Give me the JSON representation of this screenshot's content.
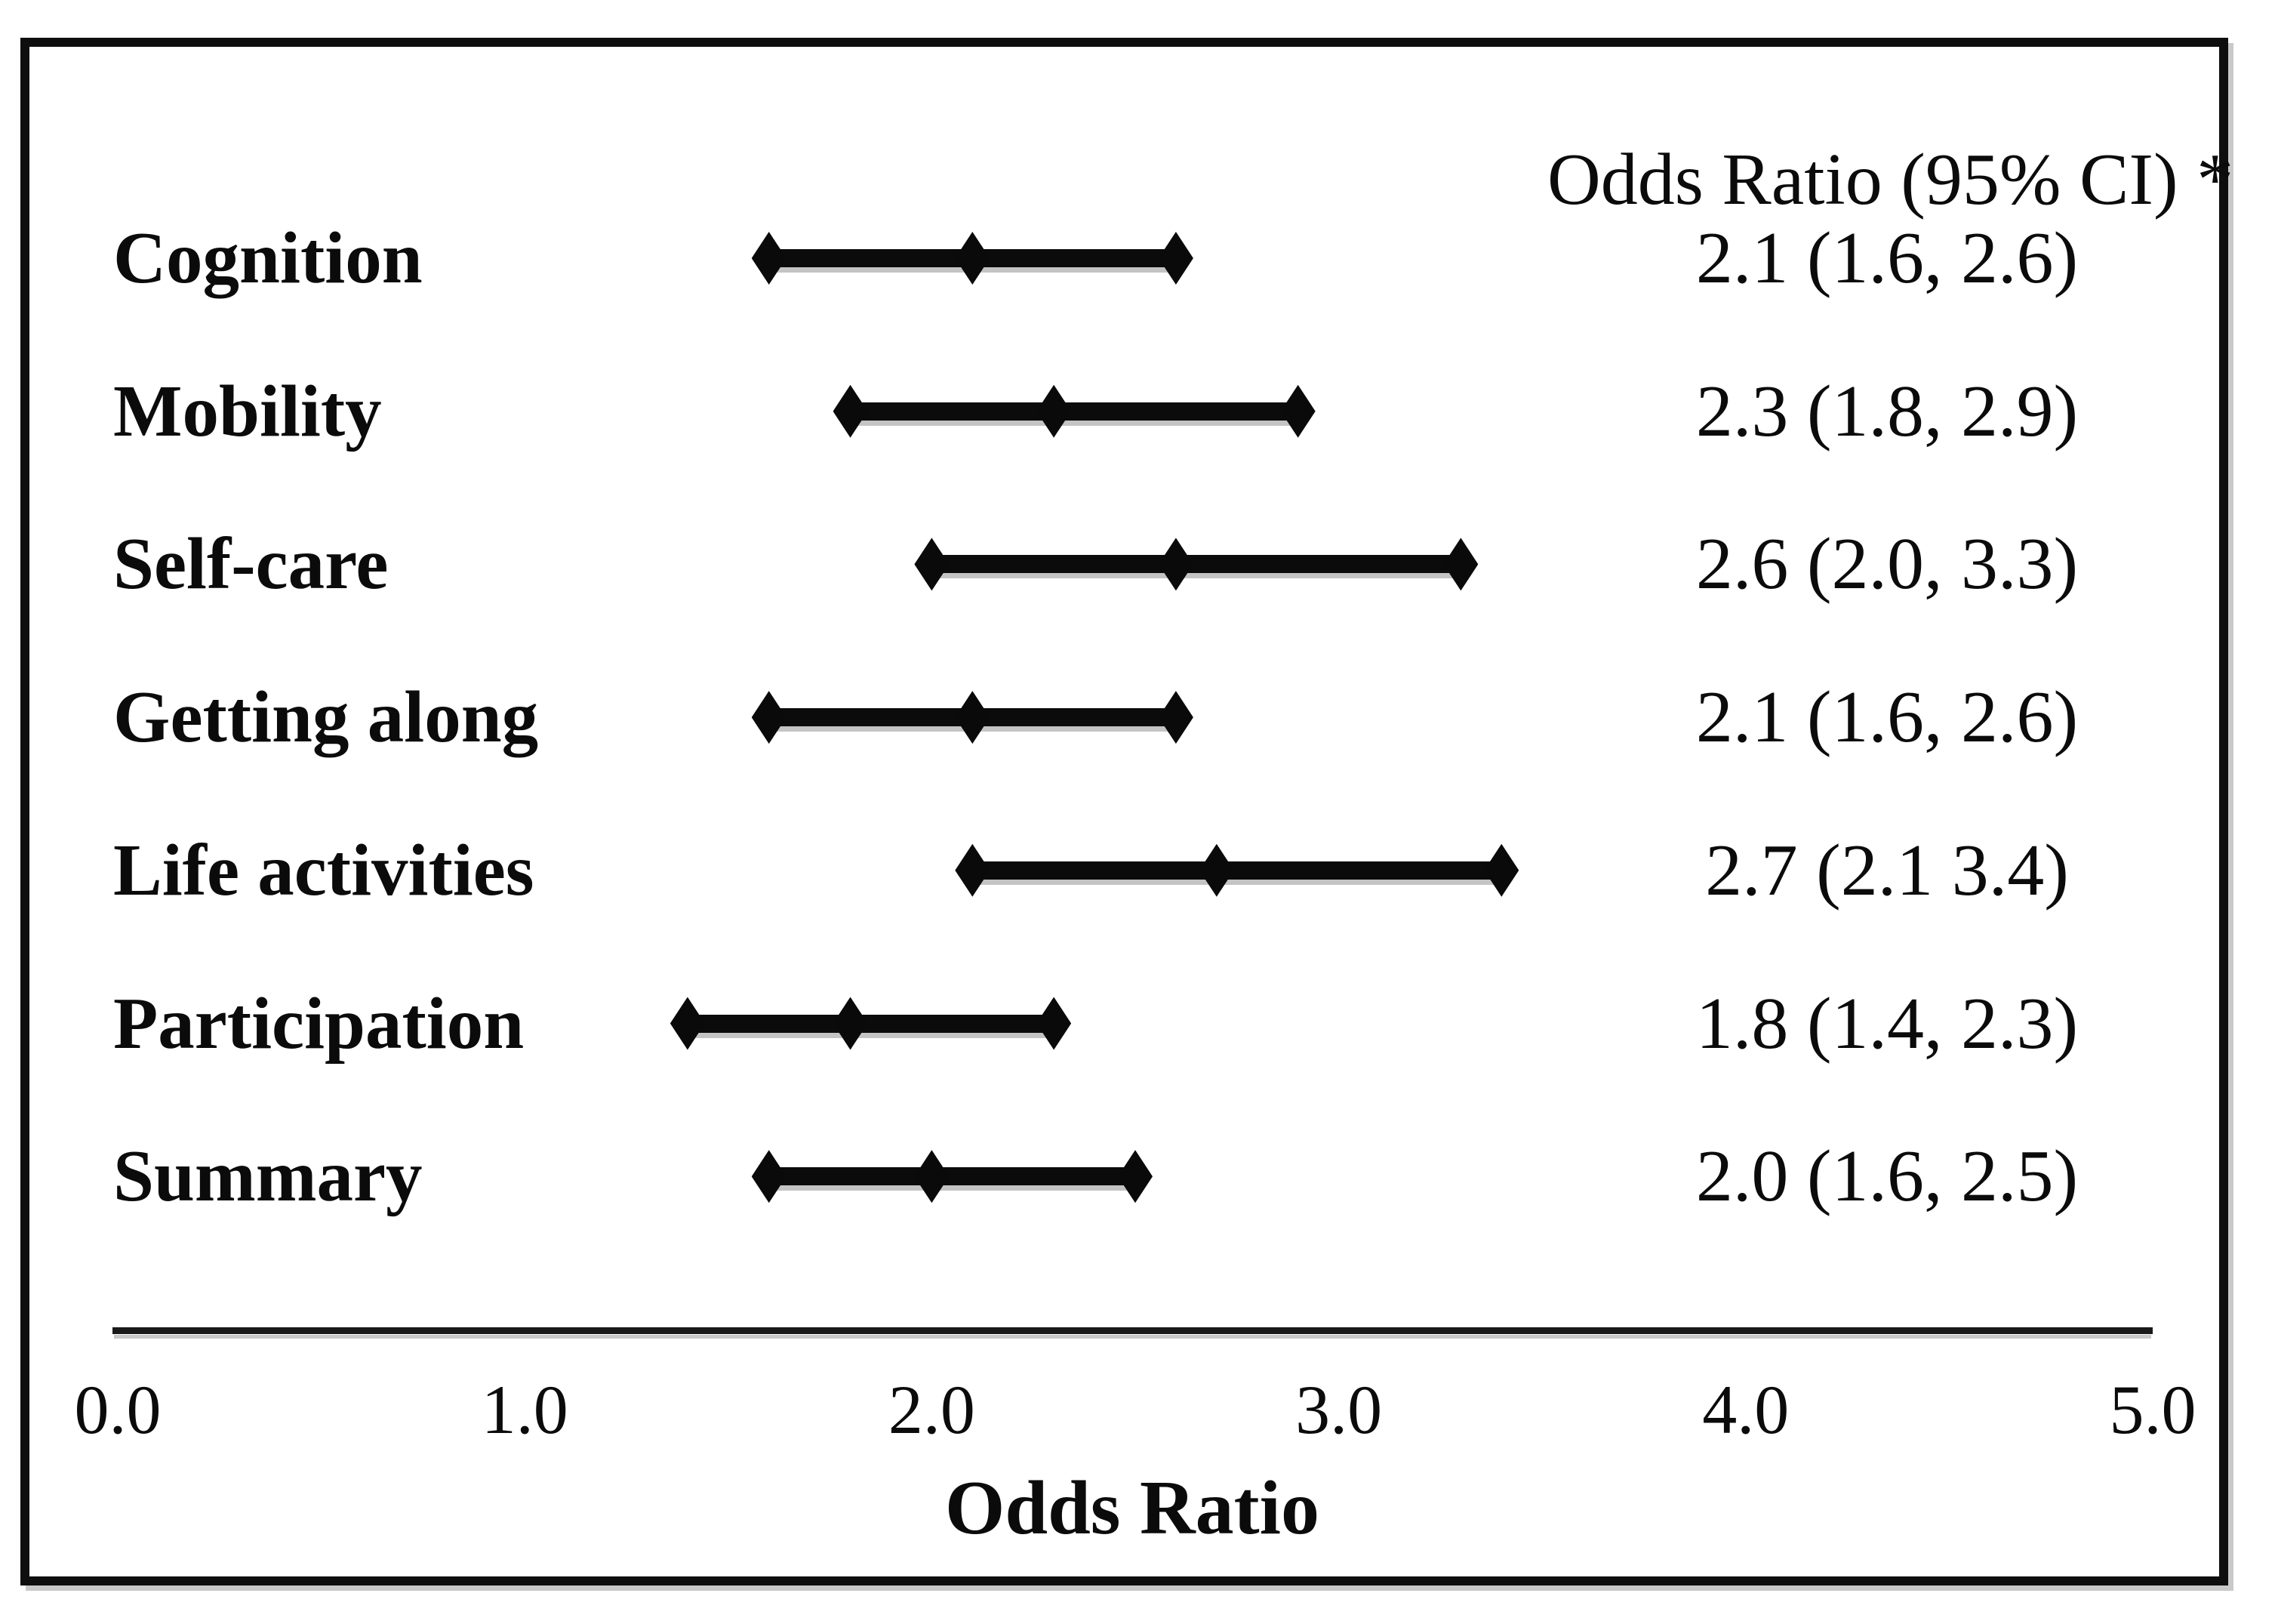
{
  "figure": {
    "frame_color": "#0e0e0e",
    "text_color": "#0b0b0b",
    "marker_color": "#0a0a0a",
    "shadow_color": "#c9c9c9",
    "background": "#ffffff"
  },
  "chart_data": {
    "type": "scatter",
    "subtype": "forest-plot",
    "column_header": "Odds Ratio (95% CI) *",
    "xlabel": "Odds Ratio",
    "xlim": [
      0.0,
      5.0
    ],
    "x_ticks": [
      "0.0",
      "1.0",
      "2.0",
      "3.0",
      "4.0",
      "5.0"
    ],
    "x_tick_values": [
      0,
      1,
      2,
      3,
      4,
      5
    ],
    "grid": "off",
    "legend": "none",
    "marker": "diamond",
    "rows": [
      {
        "label": "Cognition",
        "or": 2.1,
        "ci_low": 1.6,
        "ci_high": 2.6,
        "ci_text": "2.1 (1.6, 2.6)"
      },
      {
        "label": "Mobility",
        "or": 2.3,
        "ci_low": 1.8,
        "ci_high": 2.9,
        "ci_text": "2.3 (1.8, 2.9)"
      },
      {
        "label": "Self-care",
        "or": 2.6,
        "ci_low": 2.0,
        "ci_high": 3.3,
        "ci_text": "2.6 (2.0, 3.3)"
      },
      {
        "label": "Getting along",
        "or": 2.1,
        "ci_low": 1.6,
        "ci_high": 2.6,
        "ci_text": "2.1 (1.6, 2.6)"
      },
      {
        "label": "Life activities",
        "or": 2.7,
        "ci_low": 2.1,
        "ci_high": 3.4,
        "ci_text": "2.7 (2.1 3.4)"
      },
      {
        "label": "Participation",
        "or": 1.8,
        "ci_low": 1.4,
        "ci_high": 2.3,
        "ci_text": "1.8 (1.4, 2.3)"
      },
      {
        "label": "Summary",
        "or": 2.0,
        "ci_low": 1.6,
        "ci_high": 2.5,
        "ci_text": "2.0 (1.6, 2.5)"
      }
    ]
  }
}
